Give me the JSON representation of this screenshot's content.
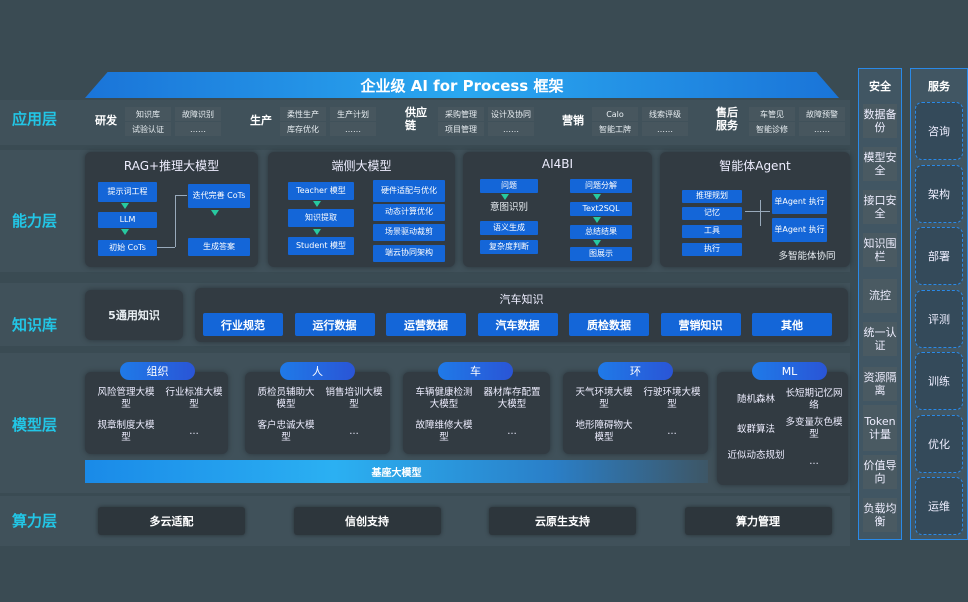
{
  "title": "企业级 AI for Process 框架",
  "layers": {
    "app": "应用层",
    "capability": "能力层",
    "knowledge": "知识库",
    "model": "模型层",
    "compute": "算力层"
  },
  "app_groups": [
    {
      "name": "研发",
      "items": [
        "知识库",
        "故障识别",
        "试验认证",
        "……"
      ]
    },
    {
      "name": "生产",
      "items": [
        "柔性生产",
        "生产计划",
        "库存优化",
        "……"
      ]
    },
    {
      "name": "供应链",
      "items": [
        "采购管理",
        "设计及协同",
        "项目管理",
        "……"
      ]
    },
    {
      "name": "营销",
      "items": [
        "Calo",
        "线索评级",
        "智能工牌",
        "……"
      ]
    },
    {
      "name": "售后服务",
      "items": [
        "车管见",
        "故障预警",
        "智能诊修",
        "……"
      ]
    }
  ],
  "capability": {
    "rag": {
      "title": "RAG+推理大模型",
      "nodes": [
        "提示词工程",
        "LLM",
        "初始 CoTs",
        "迭代完善 CoTs",
        "生成答案"
      ]
    },
    "edge": {
      "title": "端侧大模型",
      "nodes": [
        "Teacher 模型",
        "知识提取",
        "Student 模型",
        "硬件适配与优化",
        "动态计算优化",
        "场景驱动裁剪",
        "端云协同架构"
      ]
    },
    "ai4bi": {
      "title": "AI4BI",
      "nodes": [
        "问题",
        "意图识别",
        "语义生成",
        "复杂度判断",
        "问题分解",
        "Text2SQL",
        "总结结果",
        "图展示"
      ]
    },
    "agent": {
      "title": "智能体Agent",
      "nodes": [
        "推理规划",
        "记忆",
        "工具",
        "执行",
        "单Agent 执行",
        "单Agent 执行",
        "多智能体协同"
      ]
    }
  },
  "knowledge": {
    "general": "5通用知识",
    "auto_title": "汽车知识",
    "items": [
      "行业规范",
      "运行数据",
      "运营数据",
      "汽车数据",
      "质检数据",
      "营销知识",
      "其他"
    ]
  },
  "models": [
    {
      "name": "组织",
      "items": [
        "风险管理大模型",
        "行业标准大模型",
        "规章制度大模型",
        "…"
      ]
    },
    {
      "name": "人",
      "items": [
        "质检员辅助大模型",
        "销售培训大模型",
        "客户忠诚大模型",
        "…"
      ]
    },
    {
      "name": "车",
      "items": [
        "车辆健康检测大模型",
        "器材库存配置大模型",
        "故障维修大模型",
        "…"
      ]
    },
    {
      "name": "环",
      "items": [
        "天气环境大模型",
        "行驶环境大模型",
        "地形障碍物大模型",
        "…"
      ]
    },
    {
      "name": "ML",
      "items": [
        "随机森林",
        "长短期记忆网络",
        "蚁群算法",
        "多变量灰色模型",
        "近似动态规划",
        "…"
      ]
    }
  ],
  "base_model": "基座大模型",
  "compute": [
    "多云适配",
    "信创支持",
    "云原生支持",
    "算力管理"
  ],
  "security": {
    "title": "安全",
    "items": [
      "数据备份",
      "模型安全",
      "接口安全",
      "知识围栏",
      "流控",
      "统一认证",
      "资源隔离",
      "Token计量",
      "价值导向",
      "负载均衡"
    ]
  },
  "service": {
    "title": "服务",
    "items": [
      "咨询",
      "架构",
      "部署",
      "评测",
      "训练",
      "优化",
      "运维"
    ]
  },
  "colors": {
    "background": "#3a4b53",
    "accent": "#1466d8",
    "layer_label": "#22c6e6",
    "arrow": "#27c9a0"
  }
}
